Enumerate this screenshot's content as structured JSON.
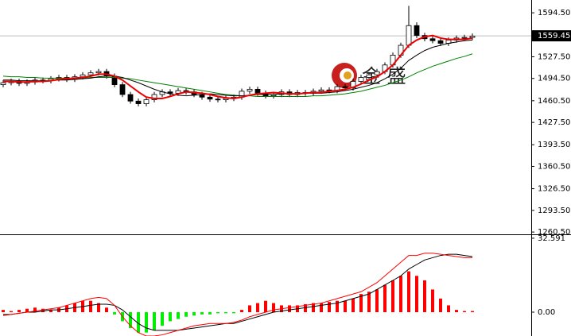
{
  "chart_data": [
    {
      "type": "candlestick",
      "open": [
        1485,
        1488,
        1490,
        1487,
        1489,
        1492,
        1491,
        1494,
        1496,
        1493,
        1497,
        1500,
        1503,
        1505,
        1498,
        1485,
        1470,
        1460,
        1456,
        1462,
        1470,
        1474,
        1472,
        1476,
        1474,
        1470,
        1466,
        1463,
        1462,
        1464,
        1466,
        1475,
        1478,
        1472,
        1468,
        1470,
        1474,
        1470,
        1473,
        1472,
        1475,
        1477,
        1476,
        1482,
        1480,
        1490,
        1496,
        1500,
        1505,
        1515,
        1530,
        1545,
        1575,
        1560,
        1555,
        1552,
        1548,
        1553,
        1556,
        1557
      ],
      "high": [
        1492,
        1494,
        1494,
        1493,
        1496,
        1496,
        1498,
        1500,
        1500,
        1501,
        1504,
        1507,
        1509,
        1509,
        1502,
        1489,
        1474,
        1464,
        1466,
        1474,
        1478,
        1478,
        1480,
        1480,
        1478,
        1474,
        1470,
        1467,
        1468,
        1470,
        1479,
        1482,
        1482,
        1476,
        1474,
        1478,
        1478,
        1477,
        1477,
        1479,
        1481,
        1481,
        1486,
        1486,
        1494,
        1500,
        1504,
        1509,
        1519,
        1534,
        1549,
        1605,
        1580,
        1564,
        1559,
        1556,
        1557,
        1560,
        1561,
        1563
      ],
      "low": [
        1481,
        1484,
        1483,
        1483,
        1485,
        1487,
        1487,
        1490,
        1489,
        1489,
        1493,
        1496,
        1499,
        1494,
        1481,
        1466,
        1456,
        1452,
        1452,
        1458,
        1466,
        1468,
        1468,
        1470,
        1466,
        1462,
        1459,
        1458,
        1458,
        1460,
        1462,
        1471,
        1468,
        1464,
        1464,
        1466,
        1466,
        1466,
        1468,
        1468,
        1471,
        1472,
        1472,
        1476,
        1476,
        1486,
        1492,
        1496,
        1501,
        1511,
        1526,
        1541,
        1556,
        1551,
        1548,
        1544,
        1544,
        1549,
        1552,
        1553
      ],
      "close": [
        1488,
        1490,
        1487,
        1489,
        1492,
        1491,
        1494,
        1496,
        1493,
        1497,
        1500,
        1503,
        1505,
        1498,
        1485,
        1470,
        1460,
        1456,
        1462,
        1470,
        1474,
        1472,
        1476,
        1474,
        1470,
        1466,
        1463,
        1462,
        1464,
        1466,
        1475,
        1478,
        1472,
        1468,
        1470,
        1474,
        1470,
        1473,
        1472,
        1475,
        1477,
        1476,
        1482,
        1480,
        1490,
        1496,
        1500,
        1505,
        1515,
        1530,
        1545,
        1575,
        1560,
        1555,
        1552,
        1548,
        1553,
        1556,
        1557,
        1559
      ],
      "up_color": "#ffffff",
      "down_color": "#000000",
      "lines": [
        {
          "color": "#008000",
          "values": [
            1498,
            1497,
            1497,
            1496,
            1496,
            1495,
            1495,
            1495,
            1495,
            1495,
            1495,
            1496,
            1496,
            1496,
            1496,
            1495,
            1494,
            1492,
            1490,
            1488,
            1486,
            1484,
            1482,
            1480,
            1478,
            1476,
            1474,
            1472,
            1470,
            1469,
            1468,
            1468,
            1467,
            1467,
            1467,
            1467,
            1467,
            1467,
            1467,
            1468,
            1468,
            1469,
            1470,
            1471,
            1473,
            1475,
            1478,
            1481,
            1484,
            1488,
            1492,
            1497,
            1503,
            1508,
            1513,
            1517,
            1521,
            1525,
            1528,
            1532
          ]
        },
        {
          "color": "#000000",
          "values": [
            1492,
            1492,
            1491,
            1491,
            1491,
            1491,
            1491,
            1492,
            1492,
            1493,
            1494,
            1495,
            1497,
            1498,
            1498,
            1496,
            1492,
            1488,
            1483,
            1478,
            1474,
            1471,
            1469,
            1468,
            1469,
            1470,
            1471,
            1470,
            1469,
            1468,
            1468,
            1469,
            1470,
            1470,
            1470,
            1471,
            1471,
            1471,
            1472,
            1472,
            1472,
            1473,
            1474,
            1476,
            1478,
            1481,
            1484,
            1488,
            1494,
            1501,
            1510,
            1522,
            1530,
            1537,
            1542,
            1545,
            1548,
            1550,
            1552,
            1553
          ]
        },
        {
          "color": "#ee0000",
          "values": [
            1490,
            1490,
            1489,
            1489,
            1490,
            1490,
            1491,
            1493,
            1494,
            1495,
            1496,
            1498,
            1501,
            1501,
            1498,
            1492,
            1483,
            1474,
            1466,
            1464,
            1464,
            1467,
            1471,
            1474,
            1473,
            1472,
            1470,
            1467,
            1465,
            1464,
            1466,
            1469,
            1471,
            1472,
            1473,
            1472,
            1471,
            1471,
            1472,
            1473,
            1473,
            1475,
            1476,
            1478,
            1481,
            1486,
            1492,
            1497,
            1505,
            1515,
            1530,
            1545,
            1553,
            1558,
            1560,
            1556,
            1554,
            1554,
            1554,
            1556
          ]
        }
      ],
      "last_price": 1559.45,
      "ylim": [
        1257,
        1614
      ],
      "yticks": [
        {
          "value": 1594.5,
          "label": "1594.50"
        },
        {
          "value": 1527.5,
          "label": "1527.50"
        },
        {
          "value": 1494.5,
          "label": "1494.50"
        },
        {
          "value": 1460.5,
          "label": "1460.50"
        },
        {
          "value": 1427.5,
          "label": "1427.50"
        },
        {
          "value": 1393.5,
          "label": "1393.50"
        },
        {
          "value": 1360.5,
          "label": "1360.50"
        },
        {
          "value": 1326.5,
          "label": "1326.50"
        },
        {
          "value": 1293.5,
          "label": "1293.50"
        },
        {
          "value": 1260.5,
          "label": "1260.50"
        }
      ],
      "watermark": "金 盛"
    },
    {
      "type": "macd",
      "histogram": [
        1,
        0.5,
        1,
        1.5,
        2,
        1.5,
        1,
        2,
        3,
        4,
        5,
        5,
        4,
        2,
        -1,
        -4,
        -7,
        -9,
        -9,
        -8,
        -6,
        -4,
        -3,
        -2,
        -1.5,
        -1,
        -1,
        -0.5,
        -0.5,
        -0.5,
        1,
        3,
        4,
        5,
        4,
        3,
        3,
        3,
        3.5,
        4,
        4,
        4.5,
        5,
        5,
        6,
        8,
        9,
        10,
        12,
        14,
        16,
        18,
        16,
        14,
        10,
        6,
        3,
        1,
        0.5,
        0.5
      ],
      "up_color": "#ff0000",
      "down_color": "#00ee00",
      "lines": [
        {
          "color": "#000000",
          "values": [
            -1,
            -1,
            -0.5,
            0,
            0,
            0.5,
            1,
            1,
            1.5,
            2,
            2.5,
            3,
            3.5,
            3.5,
            3,
            1,
            -2,
            -5,
            -7,
            -8,
            -8,
            -8,
            -8,
            -7.5,
            -7,
            -6.5,
            -6,
            -5.5,
            -5,
            -5,
            -4,
            -3,
            -2,
            -1,
            0,
            0.5,
            1,
            1.5,
            2,
            2.5,
            3,
            3.5,
            4,
            5,
            6,
            7,
            8,
            10,
            12,
            14,
            16,
            19,
            21,
            23,
            24,
            25,
            25.5,
            25.5,
            25,
            24.5
          ]
        },
        {
          "color": "#ff0000",
          "values": [
            -1.5,
            -1,
            -0.5,
            0,
            0.5,
            1,
            1.5,
            2,
            3,
            4,
            5,
            6,
            6.5,
            6,
            3,
            -2,
            -6,
            -9,
            -10.5,
            -10.5,
            -10,
            -9,
            -8,
            -7,
            -6,
            -5.5,
            -5,
            -5,
            -5,
            -4.5,
            -3.5,
            -2,
            -1,
            0,
            1,
            1.5,
            2,
            2.5,
            3,
            3.5,
            4,
            5,
            6,
            7,
            8,
            9,
            11,
            13,
            16,
            19,
            22,
            25,
            25,
            26,
            26,
            25.5,
            25,
            24.5,
            24,
            24
          ]
        }
      ],
      "ylim": [
        -10.5,
        33.6
      ],
      "yticks": [
        32.591,
        {
          "value": 0,
          "label": "0.00"
        }
      ]
    }
  ]
}
